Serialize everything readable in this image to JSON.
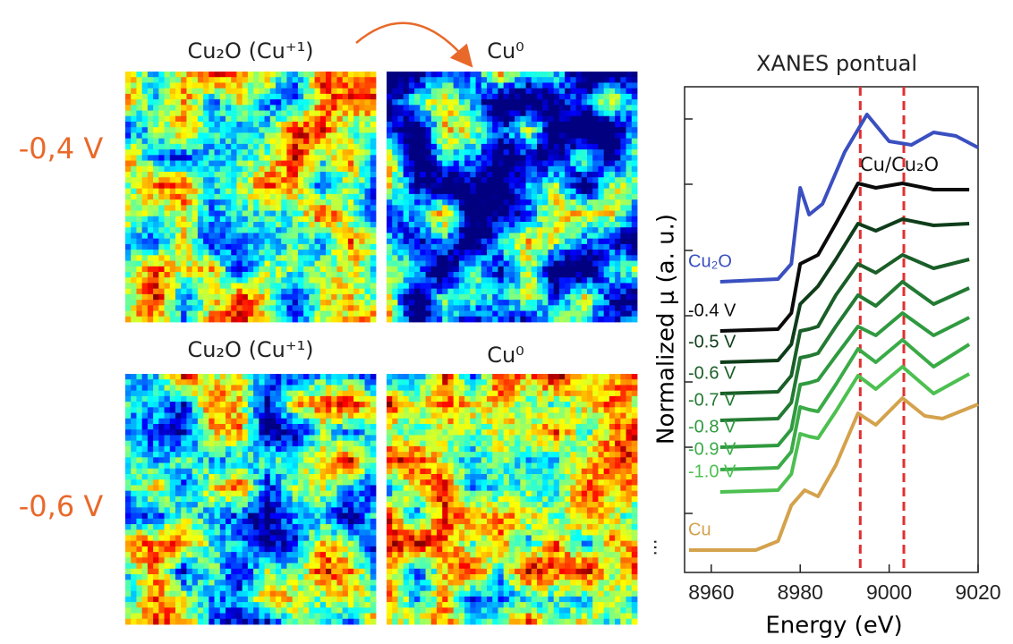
{
  "panels": {
    "row_labels": [
      "-0,4 V",
      "-0,6 V"
    ],
    "column_titles": [
      [
        "Cu₂O (Cu⁺¹)",
        "Cu⁰"
      ],
      [
        "Cu₂O (Cu⁺¹)",
        "Cu⁰"
      ]
    ]
  },
  "chart_data": {
    "type": "line",
    "title": "XANES pontual",
    "x_label": "Energy (eV)",
    "y_label": "Normalized μ (a. u.)",
    "xlim": [
      8954,
      9020
    ],
    "xticks": [
      8960,
      8980,
      9000,
      9020
    ],
    "ylim": [
      0,
      543
    ],
    "yticks": [
      66,
      140,
      213,
      287,
      360,
      434,
      507
    ],
    "reference_lines": [
      8993.5,
      9003.3
    ],
    "reference_color": "#e03030",
    "annotations": [
      "Cu/Cu₂O",
      "..."
    ],
    "series": [
      {
        "name": "Cu₂O",
        "color": "#3a4fc0",
        "x": [
          8962,
          8975,
          8978,
          8980,
          8982,
          8985,
          8990,
          8995,
          9000,
          9005,
          9010,
          9015,
          9020
        ],
        "values": [
          325,
          328,
          345,
          430,
          400,
          412,
          470,
          512,
          482,
          478,
          492,
          488,
          475
        ]
      },
      {
        "name": "-0.4 V",
        "color": "#0a0a0a",
        "x": [
          8962,
          8975,
          8978,
          8980,
          8982,
          8984,
          8988,
          8993,
          8997,
          9003,
          9010,
          9018
        ],
        "values": [
          270,
          272,
          290,
          345,
          350,
          355,
          390,
          435,
          430,
          435,
          428,
          428
        ]
      },
      {
        "name": "-0.5 V",
        "color": "#0f3d1a",
        "x": [
          8962,
          8975,
          8978,
          8980,
          8982,
          8984,
          8988,
          8993,
          8997,
          9003,
          9010,
          9018
        ],
        "values": [
          235,
          237,
          255,
          300,
          310,
          320,
          350,
          390,
          382,
          395,
          388,
          390
        ]
      },
      {
        "name": "-0.6 V",
        "color": "#1a5e28",
        "x": [
          8962,
          8975,
          8978,
          8980,
          8982,
          8984,
          8988,
          8993,
          8997,
          9003,
          9010,
          9018
        ],
        "values": [
          200,
          202,
          220,
          270,
          272,
          275,
          310,
          345,
          335,
          355,
          340,
          350
        ]
      },
      {
        "name": "-0.7 V",
        "color": "#237a33",
        "x": [
          8962,
          8975,
          8978,
          8980,
          8982,
          8984,
          8988,
          8993,
          8997,
          9003,
          9010,
          9018
        ],
        "values": [
          170,
          172,
          190,
          240,
          242,
          245,
          275,
          310,
          298,
          325,
          300,
          318
        ]
      },
      {
        "name": "-0.8 V",
        "color": "#2f9a3f",
        "x": [
          8962,
          8975,
          8978,
          8980,
          8982,
          8984,
          8988,
          8993,
          8997,
          9003,
          9010,
          9018
        ],
        "values": [
          140,
          142,
          160,
          210,
          212,
          215,
          242,
          275,
          265,
          290,
          265,
          285
        ]
      },
      {
        "name": "-0.9 V",
        "color": "#3aab47",
        "x": [
          8962,
          8975,
          8978,
          8980,
          8982,
          8984,
          8988,
          8993,
          8997,
          9003,
          9010,
          9018
        ],
        "values": [
          115,
          117,
          135,
          185,
          182,
          180,
          210,
          250,
          235,
          260,
          230,
          255
        ]
      },
      {
        "name": "-1.0 V",
        "color": "#4cc050",
        "x": [
          8962,
          8975,
          8978,
          8980,
          8982,
          8984,
          8988,
          8993,
          8997,
          9003,
          9010,
          9018
        ],
        "values": [
          90,
          92,
          110,
          155,
          152,
          150,
          180,
          220,
          205,
          230,
          200,
          222
        ]
      },
      {
        "name": "Cu",
        "color": "#d4a24c",
        "x": [
          8955,
          8970,
          8975,
          8978,
          8981,
          8984,
          8988,
          8993,
          8997,
          9003,
          9008,
          9012,
          9016,
          9020
        ],
        "values": [
          25,
          25,
          35,
          75,
          92,
          85,
          120,
          178,
          165,
          195,
          175,
          172,
          180,
          188
        ]
      }
    ]
  }
}
